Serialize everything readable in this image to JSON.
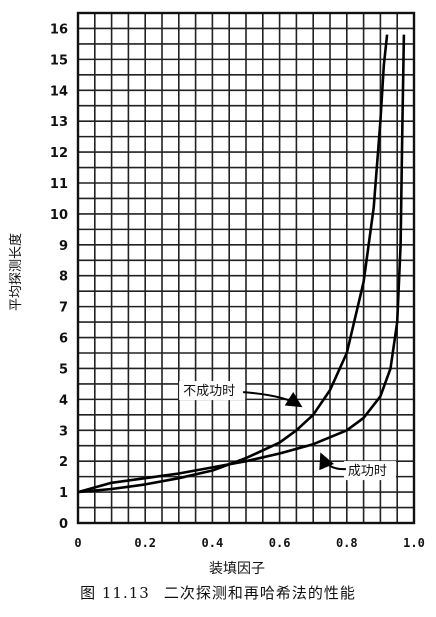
{
  "figure": {
    "caption_number": "图 11.13",
    "caption_text": "二次探测和再哈希法的性能"
  },
  "chart_data": {
    "type": "line",
    "xlabel": "装填因子",
    "ylabel": "平均探测长度",
    "xlim": [
      0,
      1.0
    ],
    "ylim": [
      0,
      16.5
    ],
    "x_ticks": [
      "0",
      "0.2",
      "0.4",
      "0.6",
      "0.8",
      "1.0"
    ],
    "x_tick_values": [
      0,
      0.2,
      0.4,
      0.6,
      0.8,
      1.0
    ],
    "y_ticks": [
      "0",
      "1",
      "2",
      "3",
      "4",
      "5",
      "6",
      "7",
      "8",
      "9",
      "10",
      "11",
      "12",
      "13",
      "14",
      "15",
      "16"
    ],
    "grid": true,
    "grid_step_x": 0.05,
    "grid_step_y": 0.5,
    "series": [
      {
        "name": "不成功时",
        "x": [
          0,
          0.1,
          0.2,
          0.3,
          0.4,
          0.5,
          0.6,
          0.65,
          0.7,
          0.75,
          0.8,
          0.85,
          0.88,
          0.9,
          0.91,
          0.92
        ],
        "y": [
          1,
          1.1,
          1.25,
          1.45,
          1.7,
          2.1,
          2.6,
          3.0,
          3.5,
          4.3,
          5.5,
          7.8,
          10.2,
          13.0,
          14.8,
          15.8
        ]
      },
      {
        "name": "成功时",
        "x": [
          0,
          0.1,
          0.2,
          0.3,
          0.4,
          0.5,
          0.6,
          0.7,
          0.8,
          0.85,
          0.9,
          0.93,
          0.95,
          0.96,
          0.965,
          0.97
        ],
        "y": [
          1,
          1.3,
          1.45,
          1.6,
          1.8,
          2.0,
          2.25,
          2.55,
          3.0,
          3.4,
          4.1,
          5.0,
          6.5,
          9.0,
          12.5,
          15.8
        ]
      }
    ],
    "annotations": [
      {
        "text": "不成功时",
        "series": 0,
        "x": 0.67,
        "y": 3.75
      },
      {
        "text": "成功时",
        "series": 1,
        "x": 0.72,
        "y": 2.1
      }
    ]
  }
}
